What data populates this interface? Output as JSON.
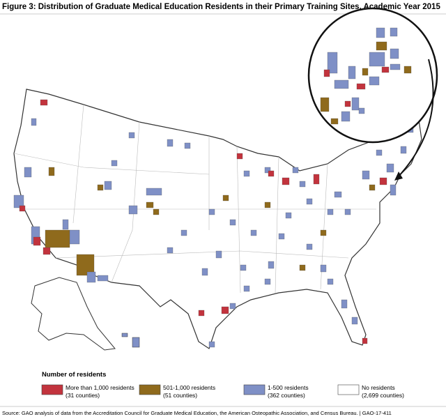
{
  "title": "Figure 3: Distribution of Graduate Medical Education Residents in their Primary Training Sites, Academic Year 2015",
  "legend": {
    "title": "Number of residents",
    "items": [
      {
        "label": "More than 1,000 residents",
        "count": "(31 counties)",
        "color": "#c2333d"
      },
      {
        "label": "501-1,000 residents",
        "count": "(51 counties)",
        "color": "#8f6a1c"
      },
      {
        "label": "1-500 residents",
        "count": "(362 counties)",
        "color": "#7f90c6"
      },
      {
        "label": "No residents",
        "count": "(2,699 counties)",
        "color": "#ffffff"
      }
    ]
  },
  "source": "Source: GAO analysis of data from the Accreditation Council for Graduate Medical Education, the American Osteopathic Association, and Census Bureau.  |  GAO-17-411"
}
